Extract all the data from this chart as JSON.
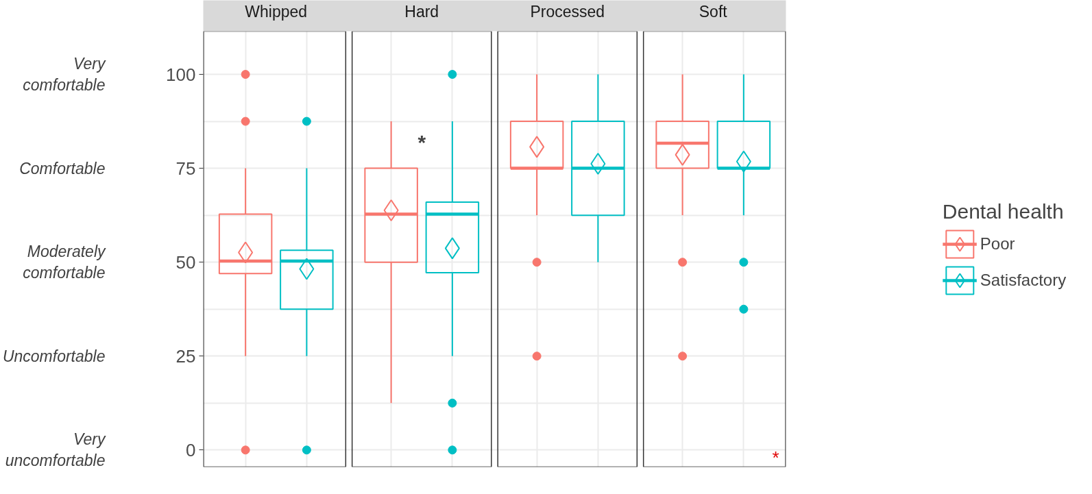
{
  "chart_data": {
    "type": "box",
    "categories": [
      "Whipped",
      "Hard",
      "Processed",
      "Soft"
    ],
    "ylim": [
      -4.5,
      111.5
    ],
    "yticks": [
      0,
      25,
      50,
      75,
      100
    ],
    "grid": true,
    "legend": "right",
    "legend_title": "Dental health",
    "annotations": [
      "Very uncomfortable",
      "Uncomfortable",
      "Moderately comfortable",
      "Comfortable",
      "Very comfortable",
      "*",
      "*"
    ],
    "series": [
      {
        "name": "Poor",
        "color": "#f8766d",
        "boxes": [
          {
            "low": 25,
            "q1": 47,
            "median": 50.3,
            "q3": 62.8,
            "high": 75,
            "mean": 52.6,
            "outliers": [
              100,
              87.5,
              0
            ]
          },
          {
            "low": 12.5,
            "q1": 50,
            "median": 62.8,
            "q3": 75,
            "high": 87.5,
            "mean": 63.8
          },
          {
            "low": 62.5,
            "q1": 75,
            "median": 75,
            "q3": 87.5,
            "high": 100,
            "mean": 80.7,
            "outliers": [
              50,
              25
            ]
          },
          {
            "low": 62.5,
            "q1": 75,
            "median": 81.7,
            "q3": 87.5,
            "high": 100,
            "mean": 78.6,
            "outliers": [
              50,
              25
            ]
          }
        ]
      },
      {
        "name": "Satisfactory",
        "color": "#00bfc4",
        "boxes": [
          {
            "low": 25,
            "q1": 37.5,
            "median": 50.3,
            "q3": 53.2,
            "high": 75,
            "mean": 48.2,
            "outliers": [
              87.5,
              0
            ]
          },
          {
            "low": 25,
            "q1": 47.2,
            "median": 62.8,
            "q3": 66,
            "high": 87.5,
            "mean": 53.7,
            "outliers": [
              100,
              12.5,
              0
            ]
          },
          {
            "low": 50,
            "q1": 62.5,
            "median": 75,
            "q3": 87.5,
            "high": 100,
            "mean": 76.2
          },
          {
            "low": 62.5,
            "q1": 75,
            "median": 75,
            "q3": 87.5,
            "high": 100,
            "mean": 76.8,
            "outliers": [
              50,
              37.5
            ]
          }
        ]
      }
    ]
  }
}
